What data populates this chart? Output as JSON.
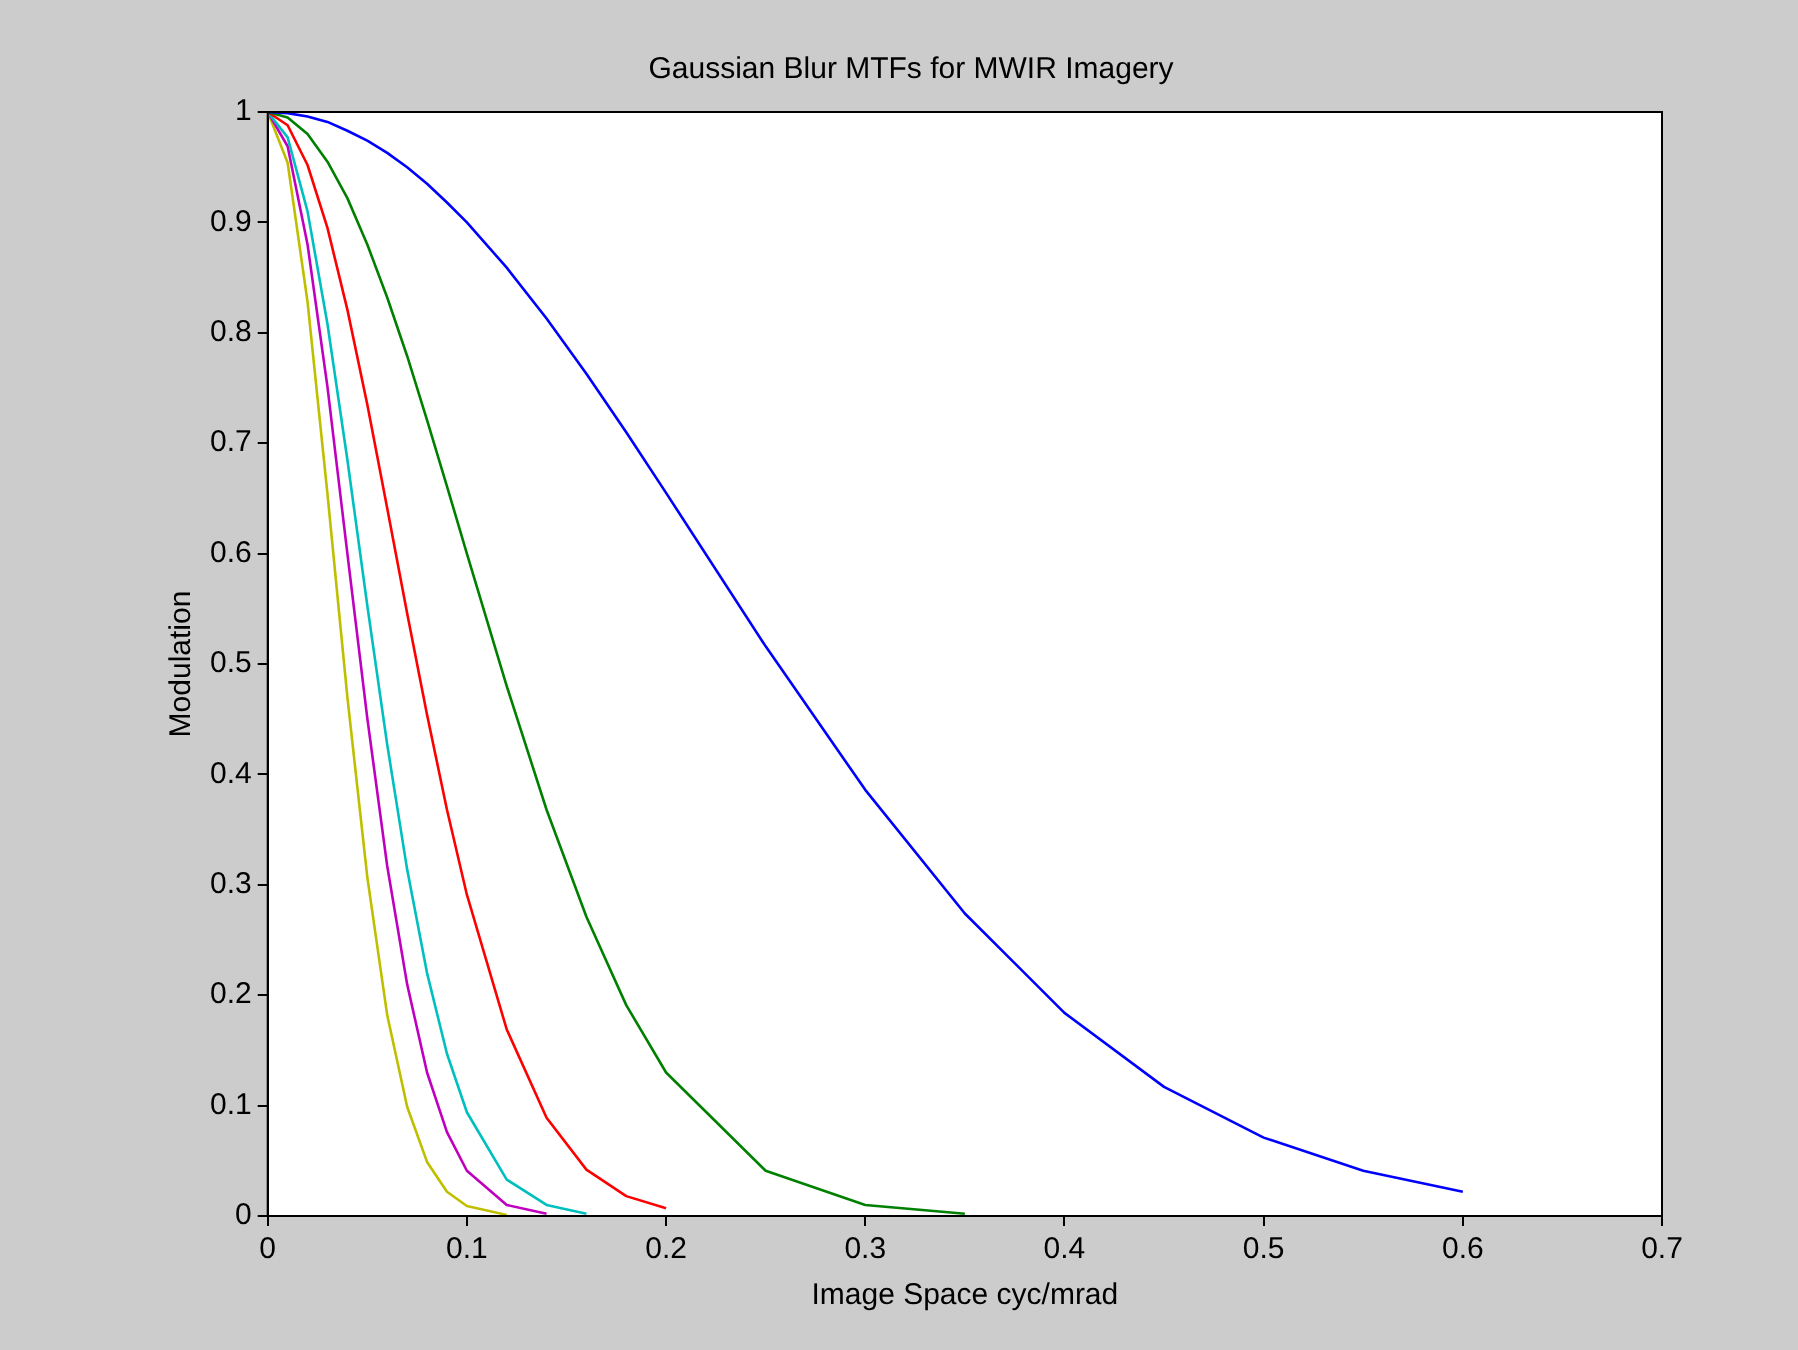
{
  "chart_data": {
    "type": "line",
    "title": "Gaussian Blur MTFs for MWIR Imagery",
    "xlabel": "Image Space cyc/mrad",
    "ylabel": "Modulation",
    "x": [
      0,
      0.01,
      0.02,
      0.03,
      0.04,
      0.05,
      0.06,
      0.07,
      0.08,
      0.09,
      0.1,
      0.12,
      0.14,
      0.16,
      0.18,
      0.2,
      0.25,
      0.3,
      0.35,
      0.4,
      0.45,
      0.5,
      0.55,
      0.6
    ],
    "series": [
      {
        "color": "#0000ff",
        "values": [
          1,
          0.999,
          0.996,
          0.991,
          0.983,
          0.974,
          0.963,
          0.95,
          0.935,
          0.918,
          0.9,
          0.859,
          0.813,
          0.763,
          0.71,
          0.655,
          0.516,
          0.386,
          0.274,
          0.184,
          0.117,
          0.071,
          0.041,
          0.022
        ]
      },
      {
        "color": "#008000",
        "values": [
          1,
          0.995,
          0.98,
          0.955,
          0.922,
          0.88,
          0.832,
          0.779,
          0.721,
          0.661,
          0.6,
          0.48,
          0.368,
          0.271,
          0.191,
          0.13,
          0.041,
          0.01,
          0.002,
          null,
          null,
          null,
          null,
          null
        ]
      },
      {
        "color": "#ff0000",
        "values": [
          1,
          0.988,
          0.952,
          0.895,
          0.821,
          0.735,
          0.641,
          0.546,
          0.454,
          0.368,
          0.291,
          0.169,
          0.089,
          0.042,
          0.018,
          0.007,
          null,
          null,
          null,
          null,
          null,
          null,
          null,
          null
        ]
      },
      {
        "color": "#00bfbf",
        "values": [
          1,
          0.977,
          0.91,
          0.808,
          0.685,
          0.553,
          0.427,
          0.314,
          0.22,
          0.147,
          0.094,
          0.033,
          0.01,
          0.002,
          null,
          null,
          null,
          null,
          null,
          null,
          null,
          null,
          null,
          null
        ]
      },
      {
        "color": "#bf00bf",
        "values": [
          1,
          0.969,
          0.88,
          0.751,
          0.6,
          0.451,
          0.317,
          0.21,
          0.13,
          0.076,
          0.041,
          0.01,
          0.002,
          null,
          null,
          null,
          null,
          null,
          null,
          null,
          null,
          null,
          null,
          null
        ]
      },
      {
        "color": "#bfbf00",
        "values": [
          1,
          0.954,
          0.828,
          0.654,
          0.47,
          0.307,
          0.182,
          0.099,
          0.049,
          0.022,
          0.009,
          0.001,
          null,
          null,
          null,
          null,
          null,
          null,
          null,
          null,
          null,
          null,
          null,
          null
        ]
      }
    ],
    "xlim": [
      0,
      0.7
    ],
    "xticks": [
      0,
      0.1,
      0.2,
      0.3,
      0.4,
      0.5,
      0.6,
      0.7
    ],
    "ylim": [
      0,
      1
    ],
    "yticks": [
      0,
      0.1,
      0.2,
      0.3,
      0.4,
      0.5,
      0.6,
      0.7,
      0.8,
      0.9,
      1
    ],
    "grid": false,
    "legend": false,
    "marker": "none",
    "line_style": "solid"
  }
}
